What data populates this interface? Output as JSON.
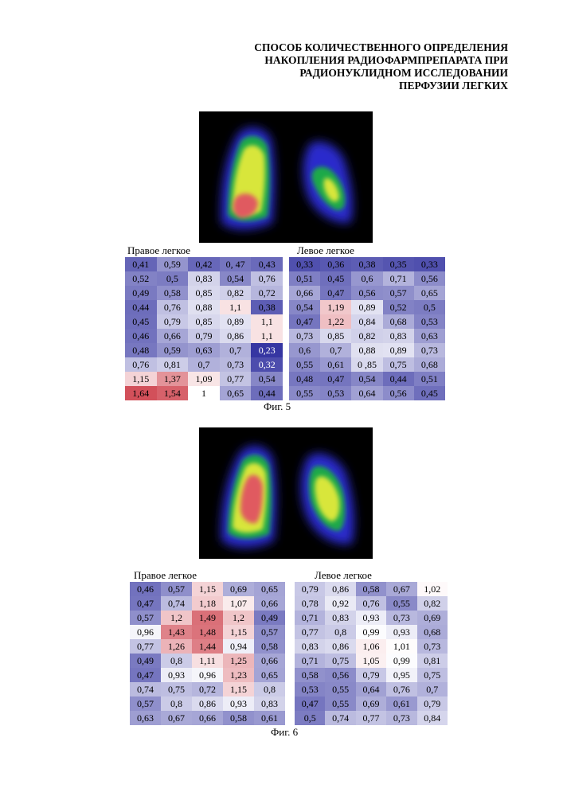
{
  "title_lines": [
    "СПОСОБ КОЛИЧЕСТВЕННОГО ОПРЕДЕЛЕНИЯ",
    "НАКОПЛЕНИЯ РАДИОФАРМПРЕПАРАТА ПРИ",
    "РАДИОНУКЛИДНОМ ИССЛЕДОВАНИИ",
    "ПЕРФУЗИИ ЛЕГКИХ"
  ],
  "fig5": {
    "caption": "Фиг. 5",
    "right_label": "Правое легкое",
    "left_label": "Левое легкое",
    "right_table": [
      [
        "0,41",
        "0,59",
        "0,42",
        "0, 47",
        "0,43"
      ],
      [
        "0,52",
        "0,5",
        "0,83",
        "0,54",
        "0,76"
      ],
      [
        "0,49",
        "0,58",
        "0,85",
        "0,82",
        "0,72"
      ],
      [
        "0,44",
        "0,76",
        "0,88",
        "1,1",
        "0,38"
      ],
      [
        "0,45",
        "0,79",
        "0,85",
        "0,89",
        "1,1"
      ],
      [
        "0,46",
        "0,66",
        "0,79",
        "0,86",
        "1,1"
      ],
      [
        "0,48",
        "0,59",
        "0,63",
        "0,7",
        "0,23"
      ],
      [
        "0,76",
        "0,81",
        "0,7",
        "0,73",
        "0,32"
      ],
      [
        "1,15",
        "1,37",
        "1,09",
        "0,77",
        "0,54"
      ],
      [
        "1,64",
        "1,54",
        "1",
        "0,65",
        "0,44"
      ]
    ],
    "left_table": [
      [
        "0,33",
        "0,36",
        "0,38",
        "0,35",
        "0,33"
      ],
      [
        "0,51",
        "0,45",
        "0,6",
        "0,71",
        "0,56"
      ],
      [
        "0,66",
        "0,47",
        "0,56",
        "0,57",
        "0,65"
      ],
      [
        "0,54",
        "1,19",
        "0,89",
        "0,52",
        "0,5"
      ],
      [
        "0,47",
        "1,22",
        "0,84",
        "0,68",
        "0,53"
      ],
      [
        "0,73",
        "0,85",
        "0,82",
        "0,83",
        "0,63"
      ],
      [
        "0,6",
        "0,7",
        "0,88",
        "0,89",
        "0,73"
      ],
      [
        "0,55",
        "0,61",
        "0 ,85",
        "0,75",
        "0,68"
      ],
      [
        "0,48",
        "0,47",
        "0,54",
        "0,44",
        "0,51"
      ],
      [
        "0,55",
        "0,53",
        "0,64",
        "0,56",
        "0,45"
      ]
    ]
  },
  "fig6": {
    "caption": "Фиг. 6",
    "right_label": "Правое легкое",
    "left_label": "Левое легкое",
    "right_table": [
      [
        "0,46",
        "0,57",
        "1,15",
        "0,69",
        "0,65"
      ],
      [
        "0,47",
        "0,74",
        "1,18",
        "1,07",
        "0,66"
      ],
      [
        "0,57",
        "1,2",
        "1,49",
        "1,2",
        "0,49"
      ],
      [
        "0,96",
        "1,43",
        "1,48",
        "1,15",
        "0,57"
      ],
      [
        "0,77",
        "1,26",
        "1,44",
        "0,94",
        "0,58"
      ],
      [
        "0,49",
        "0,8",
        "1,11",
        "1,25",
        "0,66"
      ],
      [
        "0,47",
        "0,93",
        "0,96",
        "1,23",
        "0,65"
      ],
      [
        "0,74",
        "0,75",
        "0,72",
        "1,15",
        "0,8"
      ],
      [
        "0,57",
        "0,8",
        "0,86",
        "0,93",
        "0,83"
      ],
      [
        "0,63",
        "0,67",
        "0,66",
        "0,58",
        "0,61"
      ]
    ],
    "left_table": [
      [
        "0,79",
        "0,86",
        "0,58",
        "0,67",
        "1,02"
      ],
      [
        "0,78",
        "0,92",
        "0,76",
        "0,55",
        "0,82"
      ],
      [
        "0,71",
        "0,83",
        "0,93",
        "0,73",
        "0,69"
      ],
      [
        "0,77",
        "0,8",
        "0,99",
        "0,93",
        "0,68"
      ],
      [
        "0,83",
        "0,86",
        "1,06",
        "1,01",
        "0,73"
      ],
      [
        "0,71",
        "0,75",
        "1,05",
        "0,99",
        "0,81"
      ],
      [
        "0,58",
        "0,56",
        "0,79",
        "0,95",
        "0,75"
      ],
      [
        "0,53",
        "0,55",
        "0,64",
        "0,76",
        "0,7"
      ],
      [
        "0,47",
        "0,55",
        "0,69",
        "0,61",
        "0,79"
      ],
      [
        "0,5",
        "0,74",
        "0,77",
        "0,73",
        "0,84"
      ]
    ]
  },
  "colors": {
    "low": "#2e2e9e",
    "mid": "#ffffff",
    "high": "#d2505a"
  }
}
